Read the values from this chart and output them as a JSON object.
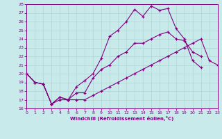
{
  "xlabel": "Windchill (Refroidissement éolien,°C)",
  "background_color": "#c8eaea",
  "line_color": "#800080",
  "grid_color": "#b0d4d4",
  "xlim": [
    0,
    23
  ],
  "ylim": [
    16,
    28
  ],
  "xticks": [
    0,
    1,
    2,
    3,
    4,
    5,
    6,
    7,
    8,
    9,
    10,
    11,
    12,
    13,
    14,
    15,
    16,
    17,
    18,
    19,
    20,
    21,
    22,
    23
  ],
  "yticks": [
    16,
    17,
    18,
    19,
    20,
    21,
    22,
    23,
    24,
    25,
    26,
    27,
    28
  ],
  "line1_x": [
    0,
    1,
    2,
    3,
    4,
    5,
    6,
    7,
    8,
    9,
    10,
    11,
    12,
    13,
    14,
    15,
    16,
    17,
    18,
    19,
    20,
    21,
    22,
    23
  ],
  "line1_y": [
    20,
    19,
    18.8,
    16.5,
    17.3,
    17.0,
    18.5,
    19.2,
    20.0,
    21.8,
    24.3,
    25.0,
    26.0,
    27.4,
    26.6,
    27.8,
    27.3,
    27.5,
    25.2,
    24.0,
    21.5,
    20.7,
    null,
    null
  ],
  "line2_x": [
    0,
    1,
    2,
    3,
    4,
    5,
    6,
    7,
    8,
    9,
    10,
    11,
    12,
    13,
    14,
    15,
    16,
    17,
    18,
    19,
    20,
    21,
    22,
    23
  ],
  "line2_y": [
    20,
    19,
    18.8,
    16.5,
    17.3,
    17.0,
    17.8,
    17.8,
    19.5,
    20.5,
    21.0,
    22.0,
    22.5,
    23.5,
    23.5,
    24.0,
    24.5,
    24.8,
    24.0,
    23.8,
    22.5,
    22.0,
    null,
    null
  ],
  "line3_x": [
    0,
    1,
    2,
    3,
    4,
    5,
    6,
    7,
    8,
    9,
    10,
    11,
    12,
    13,
    14,
    15,
    16,
    17,
    18,
    19,
    20,
    21,
    22,
    23
  ],
  "line3_y": [
    20,
    19,
    18.8,
    16.5,
    17.0,
    17.0,
    17.0,
    17.0,
    17.5,
    18.0,
    18.5,
    19.0,
    19.5,
    20.0,
    20.5,
    21.0,
    21.5,
    22.0,
    22.5,
    23.0,
    23.5,
    24.0,
    21.5,
    21.0
  ]
}
